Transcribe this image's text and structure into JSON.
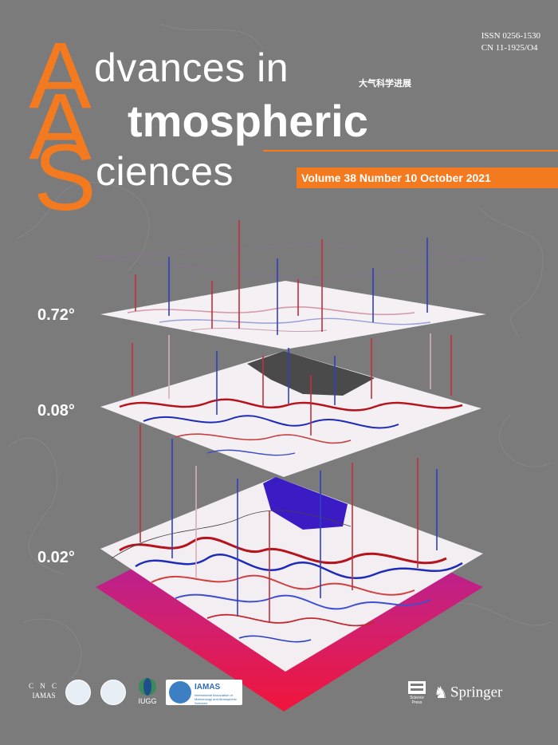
{
  "issn": {
    "line1": "ISSN 0256-1530",
    "line2": "CN  11-1925/O4"
  },
  "title": {
    "letter_a1": "A",
    "word1": "dvances in",
    "letter_a2": "A",
    "word2": "tmospheric",
    "letter_s": "S",
    "word3": "ciences",
    "chinese": "大气科学进展"
  },
  "issue": {
    "text": "Volume 38 Number 10  October 2021"
  },
  "resolutions": {
    "layer1": "0.72°",
    "layer2": "0.08°",
    "layer3": "0.02°"
  },
  "logos": {
    "cnc_line1": "C N C",
    "cnc_line2": "IAMAS",
    "iugg": "IUGG",
    "iamas_word": "IAMAS",
    "iamas_sub": "International Association of Meteorology and Atmospheric Sciences",
    "science_press": "Science Press",
    "springer": "Springer"
  },
  "colors": {
    "background": "#7b7b7b",
    "accent": "#f47a20",
    "text": "#ffffff"
  }
}
